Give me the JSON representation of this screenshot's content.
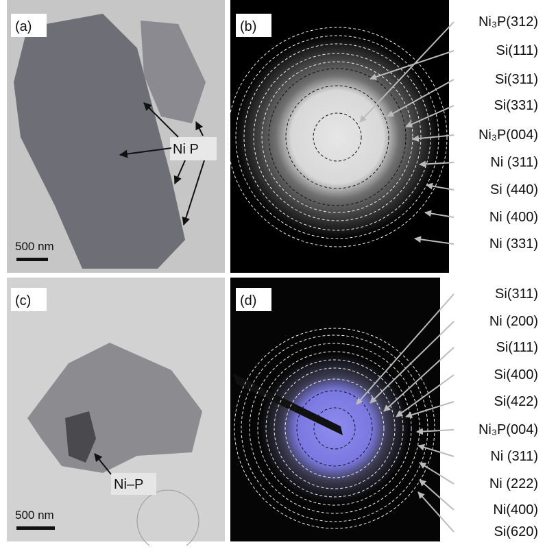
{
  "panels": [
    {
      "label": "(a)",
      "annotation": "Ni P",
      "scale_bar": "500 nm"
    },
    {
      "label": "(b)",
      "rings": [
        "Ni₃P(312)",
        "Si(111)",
        "Si(311)",
        "Si(331)",
        "Ni₃P(004)",
        "Ni (311)",
        "Si (440)",
        "Ni (400)",
        "Ni (331)"
      ]
    },
    {
      "label": "(c)",
      "annotation": "Ni–P",
      "scale_bar": "500 nm"
    },
    {
      "label": "(d)",
      "rings": [
        "Si(311)",
        "Ni (200)",
        "Si(111)",
        "Si(400)",
        "Si(422)",
        "Ni₃P(004)",
        "Ni (311)",
        "Ni (222)",
        "Ni(400)",
        "Si(620)"
      ]
    }
  ]
}
